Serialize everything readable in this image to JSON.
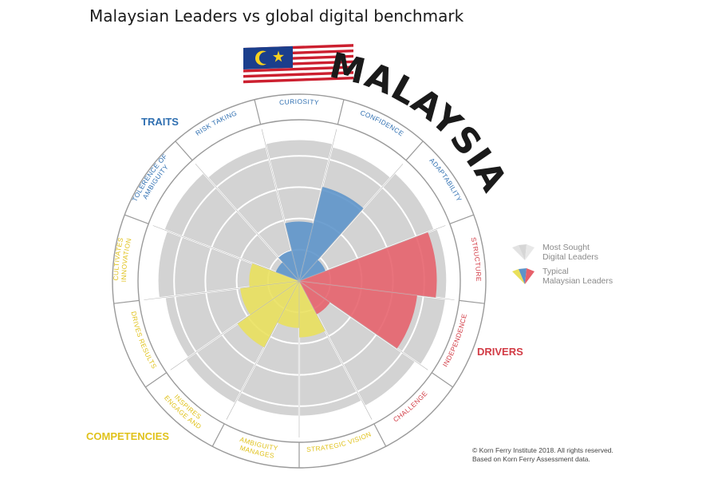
{
  "title": "Malaysian Leaders vs global digital benchmark",
  "country_label": "MALAYSIA",
  "group_labels": {
    "traits": "TRAITS",
    "drivers": "DRIVERS",
    "competencies": "COMPETENCIES"
  },
  "legend": {
    "benchmark": "Most Sought\nDigital Leaders",
    "malaysian": "Typical\nMalaysian Leaders"
  },
  "copyright": "© Korn Ferry Institute 2018. All rights reserved.\nBased on Korn Ferry Assessment data.",
  "colors": {
    "traits": "#5b93c9",
    "drivers": "#e6606a",
    "competencies": "#e9e05a",
    "benchmark": "#d3d3d3",
    "traits_label": "#2f6fb1",
    "drivers_label": "#d23b45",
    "competencies_label": "#e0c21b"
  },
  "chart_data": {
    "type": "polar-area",
    "scale_max": 5,
    "categories": [
      {
        "label": "CURIOSITY",
        "group": "traits"
      },
      {
        "label": "CONFIDENCE",
        "group": "traits"
      },
      {
        "label": "ADAPTABILITY",
        "group": "traits"
      },
      {
        "label": "STRUCTURE",
        "group": "drivers"
      },
      {
        "label": "INDEPENDENCE",
        "group": "drivers"
      },
      {
        "label": "CHALLENGE",
        "group": "drivers"
      },
      {
        "label": "STRATEGIC VISION",
        "group": "competencies"
      },
      {
        "label": "MANAGES AMBIGUITY",
        "group": "competencies"
      },
      {
        "label": "ENGAGE AND INSPIRES",
        "group": "competencies"
      },
      {
        "label": "DRIVES RESULTS",
        "group": "competencies"
      },
      {
        "label": "CULTIVATES INNOVATION",
        "group": "competencies"
      },
      {
        "label": "TOLERENCE OF AMBIGUITY",
        "group": "traits"
      },
      {
        "label": "RISK TAKING",
        "group": "traits"
      }
    ],
    "series": [
      {
        "name": "Most Sought Digital Leaders",
        "values": [
          4.5,
          4.4,
          4.6,
          4.7,
          4.7,
          4.5,
          4.3,
          4.3,
          4.4,
          4.3,
          4.5,
          4.6,
          4.4
        ]
      },
      {
        "name": "Typical Malaysian Leaders",
        "values": [
          1.9,
          3.1,
          0.9,
          4.4,
          3.8,
          1.2,
          1.8,
          1.5,
          2.4,
          1.9,
          1.6,
          0.8,
          1.0
        ]
      }
    ]
  }
}
